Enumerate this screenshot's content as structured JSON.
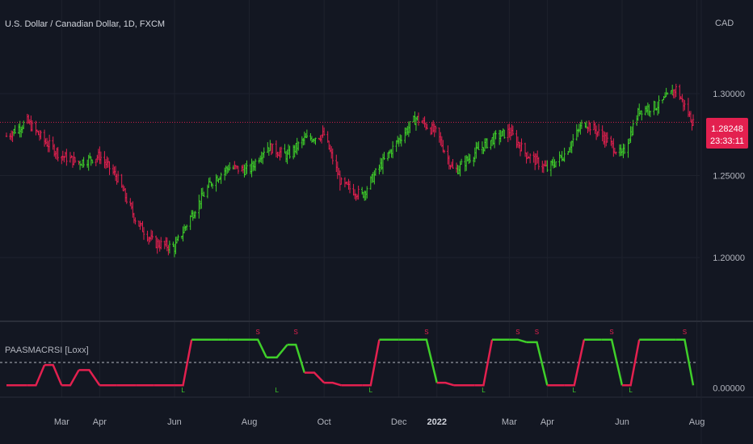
{
  "header": {
    "title": "U.S. Dollar / Canadian Dollar, 1D, FXCM",
    "currency": "CAD"
  },
  "colors": {
    "background": "#131722",
    "grid": "#1e222d",
    "up": "#3fcf2a",
    "down": "#e3204f",
    "text": "#b2b5be",
    "price_badge": "#e3204f",
    "ref_line": "#b2b5be"
  },
  "price_tag": {
    "price": "1.28248",
    "countdown": "23:33:11"
  },
  "chart_data": [
    {
      "type": "candlestick",
      "title": "",
      "y_ticks": [
        "1.20000",
        "1.25000",
        "1.30000"
      ],
      "ylim": [
        1.165,
        1.335
      ],
      "x_ticks": [
        "Mar",
        "Apr",
        "Jun",
        "Aug",
        "Oct",
        "Dec",
        "2022",
        "Mar",
        "Apr",
        "Jun",
        "Aug"
      ],
      "last_price": 1.28248,
      "x": [
        "2021-01-15",
        "2021-02-01",
        "2021-02-15",
        "2021-03-01",
        "2021-03-15",
        "2021-04-01",
        "2021-04-15",
        "2021-05-01",
        "2021-05-15",
        "2021-06-01",
        "2021-06-15",
        "2021-07-01",
        "2021-07-15",
        "2021-08-01",
        "2021-08-15",
        "2021-09-01",
        "2021-09-15",
        "2021-10-01",
        "2021-10-15",
        "2021-11-01",
        "2021-11-15",
        "2021-12-01",
        "2021-12-15",
        "2022-01-01",
        "2022-01-15",
        "2022-02-01",
        "2022-02-15",
        "2022-03-01",
        "2022-03-15",
        "2022-04-01",
        "2022-04-15",
        "2022-05-01",
        "2022-05-15",
        "2022-06-01",
        "2022-06-15",
        "2022-07-01",
        "2022-07-15",
        "2022-07-29"
      ],
      "close": [
        1.274,
        1.283,
        1.271,
        1.262,
        1.258,
        1.262,
        1.249,
        1.222,
        1.209,
        1.206,
        1.226,
        1.246,
        1.255,
        1.253,
        1.268,
        1.262,
        1.272,
        1.275,
        1.245,
        1.238,
        1.255,
        1.272,
        1.285,
        1.276,
        1.252,
        1.264,
        1.272,
        1.277,
        1.263,
        1.254,
        1.263,
        1.283,
        1.275,
        1.262,
        1.29,
        1.293,
        1.303,
        1.282
      ]
    },
    {
      "type": "line",
      "title": "PAASMACRSI [Loxx]",
      "y_ticks": [
        "0.00000"
      ],
      "ylim": [
        -0.12,
        1.12
      ],
      "reference_level": 0.5,
      "markers": [
        "L",
        "S"
      ],
      "x": [
        "2021-01-15",
        "2021-02-01",
        "2021-02-15",
        "2021-03-01",
        "2021-03-15",
        "2021-04-01",
        "2021-04-15",
        "2021-05-01",
        "2021-05-15",
        "2021-06-01",
        "2021-06-15",
        "2021-07-01",
        "2021-07-15",
        "2021-08-01",
        "2021-08-15",
        "2021-09-01",
        "2021-09-15",
        "2021-10-01",
        "2021-10-15",
        "2021-11-01",
        "2021-11-15",
        "2021-12-01",
        "2021-12-15",
        "2022-01-01",
        "2022-01-15",
        "2022-02-01",
        "2022-02-15",
        "2022-03-01",
        "2022-03-15",
        "2022-04-01",
        "2022-04-15",
        "2022-05-01",
        "2022-05-15",
        "2022-06-01",
        "2022-06-15",
        "2022-07-01",
        "2022-07-15",
        "2022-07-29"
      ],
      "values": [
        0.05,
        0.05,
        0.45,
        0.05,
        0.35,
        0.05,
        0.05,
        0.05,
        0.05,
        0.05,
        0.95,
        0.95,
        0.95,
        0.95,
        0.6,
        0.85,
        0.3,
        0.1,
        0.05,
        0.05,
        0.95,
        0.95,
        0.95,
        0.1,
        0.05,
        0.05,
        0.95,
        0.95,
        0.9,
        0.05,
        0.05,
        0.95,
        0.95,
        0.05,
        0.95,
        0.95,
        0.95,
        0.05
      ]
    }
  ]
}
